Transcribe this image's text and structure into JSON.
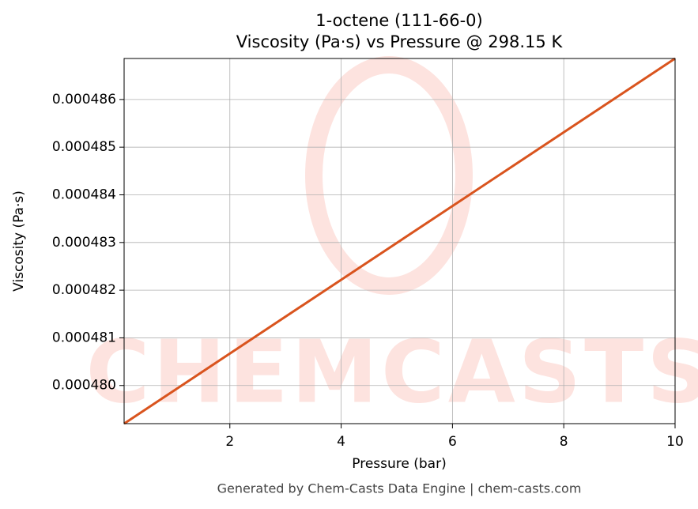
{
  "chart_data": {
    "type": "line",
    "title": "1-octene (111-66-0)",
    "subtitle": "Viscosity (Pa·s) vs Pressure @ 298.15 K",
    "x_label": "Pressure (bar)",
    "y_label": "Viscosity (Pa·s)",
    "watermark": "CHEMCASTS",
    "footer": "Generated by Chem-Casts Data Engine | chem-casts.com",
    "x": [
      0.1,
      10
    ],
    "series": [
      {
        "name": "Viscosity",
        "color": "#d9541e",
        "values": [
          0.0004792,
          0.00048686
        ]
      }
    ],
    "xlim": [
      0.1,
      10
    ],
    "ylim": [
      0.0004792,
      0.00048686
    ],
    "xticks": [
      2,
      4,
      6,
      8,
      10
    ],
    "yticks": [
      {
        "value": 0.00048,
        "label": "0.000480"
      },
      {
        "value": 0.000481,
        "label": "0.000481"
      },
      {
        "value": 0.000482,
        "label": "0.000482"
      },
      {
        "value": 0.000483,
        "label": "0.000483"
      },
      {
        "value": 0.000484,
        "label": "0.000484"
      },
      {
        "value": 0.000485,
        "label": "0.000485"
      },
      {
        "value": 0.000486,
        "label": "0.000486"
      }
    ],
    "grid": true
  }
}
